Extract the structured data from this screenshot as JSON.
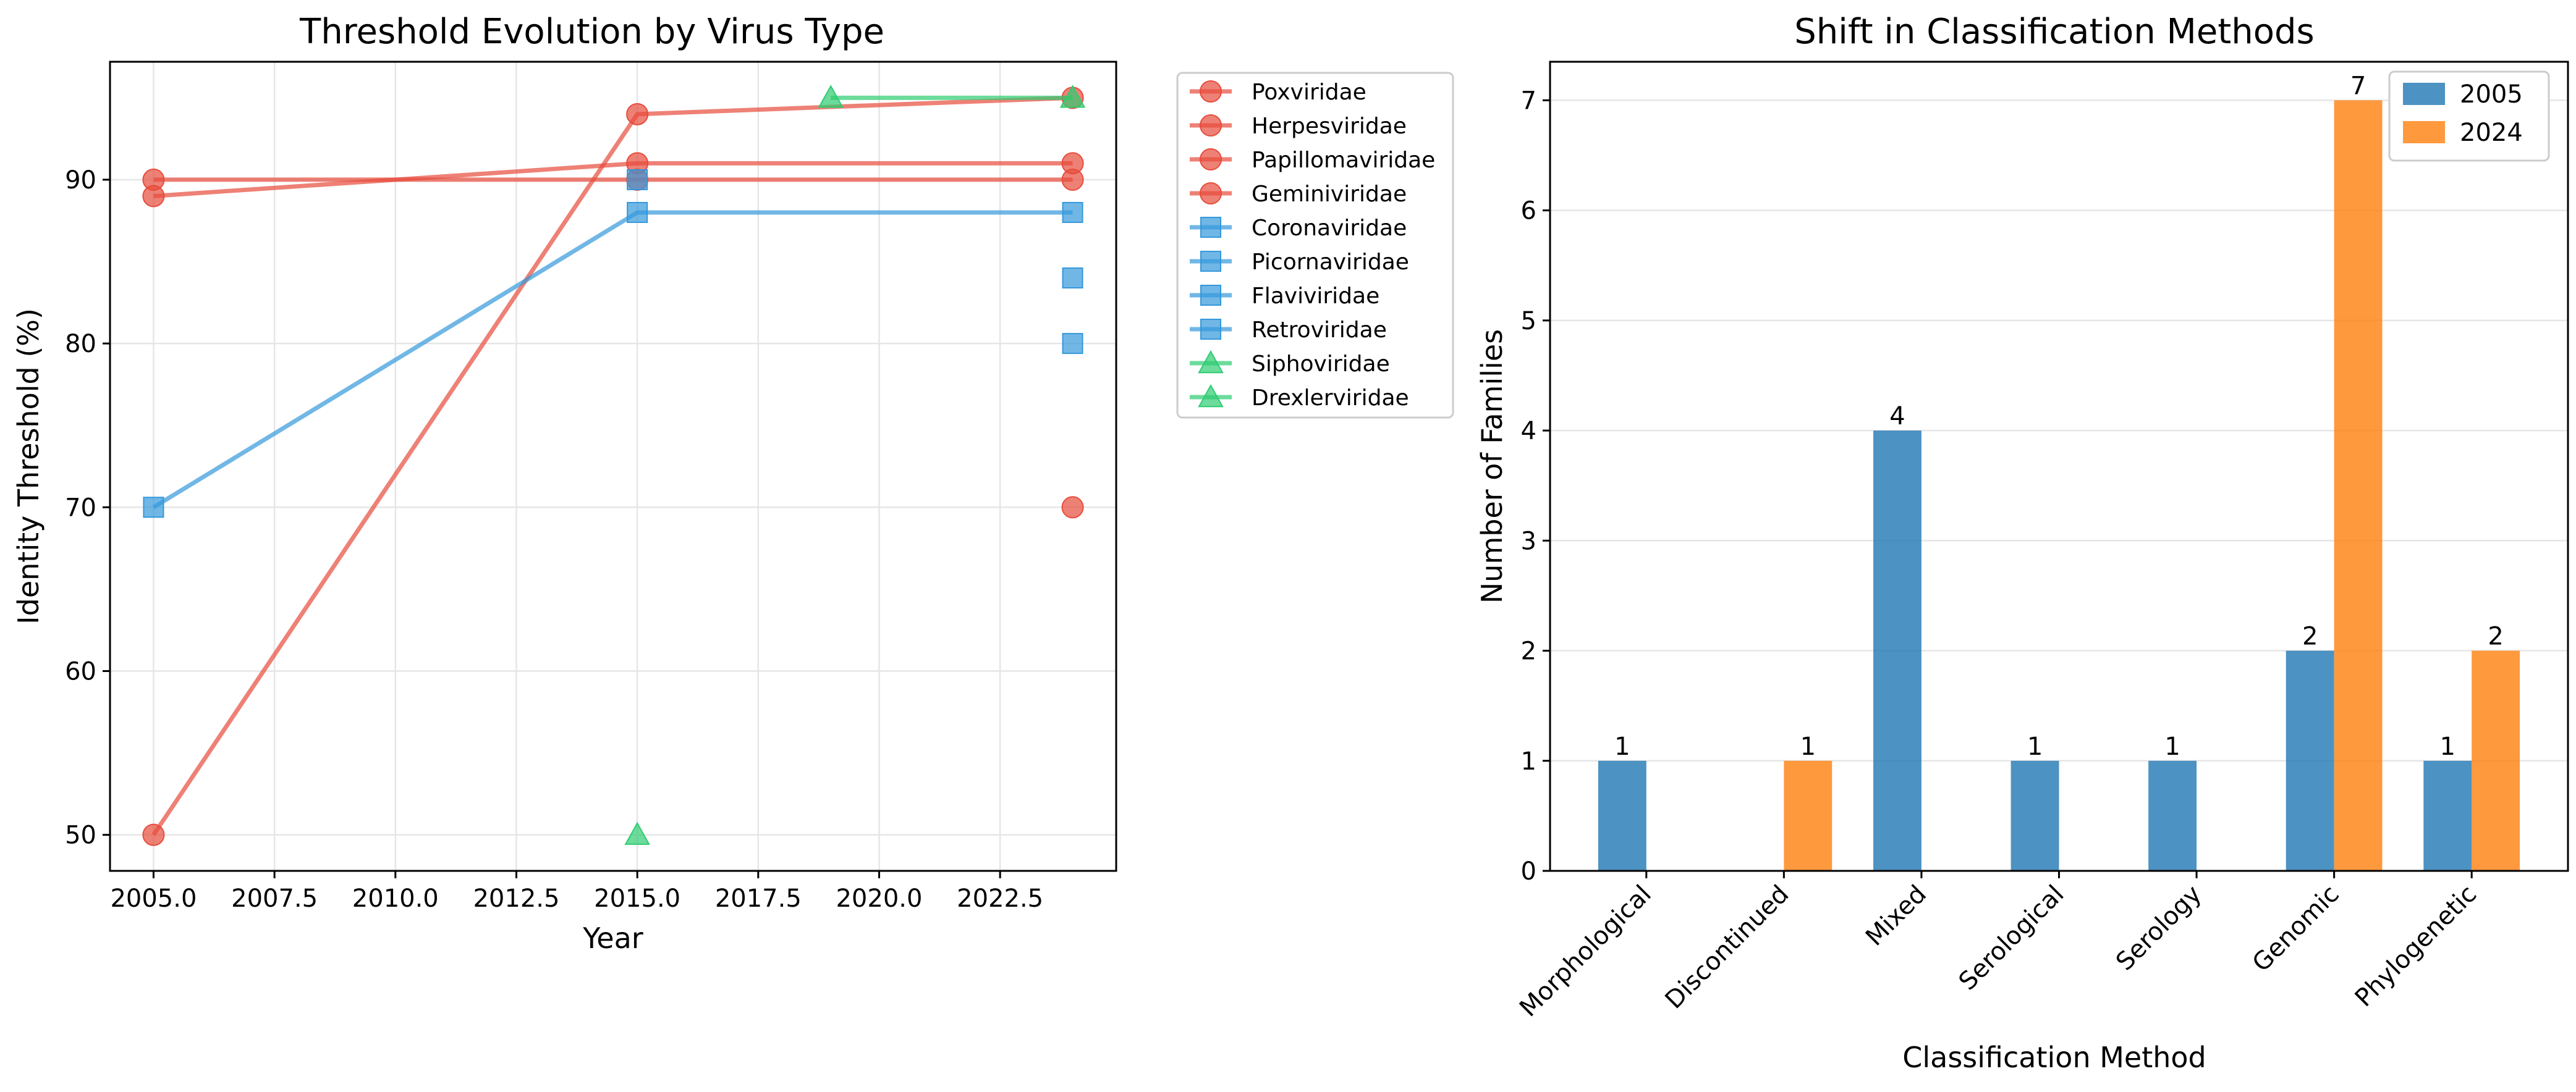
{
  "chart_data": [
    {
      "type": "line",
      "title": "Threshold Evolution by Virus Type",
      "xlabel": "Year",
      "ylabel": "Identity Threshold (%)",
      "xlim": [
        2004.1,
        2024.9
      ],
      "ylim": [
        47.8,
        97.2
      ],
      "xticks": [
        "2005.0",
        "2007.5",
        "2010.0",
        "2012.5",
        "2015.0",
        "2017.5",
        "2020.0",
        "2022.5"
      ],
      "yticks": [
        "50",
        "60",
        "70",
        "80",
        "90"
      ],
      "grid": true,
      "legend_position": "outside-right",
      "colors": {
        "red": "#e74c3c",
        "blue": "#3498db",
        "green": "#2ecc71"
      },
      "series": [
        {
          "name": "Poxviridae",
          "color": "#e74c3c",
          "marker": "circle",
          "points": [
            [
              2005,
              50
            ],
            [
              2015,
              94
            ],
            [
              2024,
              95
            ]
          ]
        },
        {
          "name": "Herpesviridae",
          "color": "#e74c3c",
          "marker": "circle",
          "points": [
            [
              2005,
              90
            ],
            [
              2015,
              90
            ],
            [
              2024,
              90
            ]
          ]
        },
        {
          "name": "Papillomaviridae",
          "color": "#e74c3c",
          "marker": "circle",
          "points": [
            [
              2005,
              89
            ],
            [
              2015,
              91
            ],
            [
              2024,
              91
            ]
          ]
        },
        {
          "name": "Geminiviridae",
          "color": "#e74c3c",
          "marker": "circle",
          "points": [
            [
              2024,
              70
            ]
          ]
        },
        {
          "name": "Coronaviridae",
          "color": "#3498db",
          "marker": "square",
          "points": [
            [
              2005,
              70
            ],
            [
              2015,
              88
            ],
            [
              2024,
              88
            ]
          ]
        },
        {
          "name": "Picornaviridae",
          "color": "#3498db",
          "marker": "square",
          "points": [
            [
              2015,
              90
            ]
          ]
        },
        {
          "name": "Flaviviridae",
          "color": "#3498db",
          "marker": "square",
          "points": [
            [
              2024,
              84
            ]
          ]
        },
        {
          "name": "Retroviridae",
          "color": "#3498db",
          "marker": "square",
          "points": [
            [
              2024,
              80
            ]
          ]
        },
        {
          "name": "Siphoviridae",
          "color": "#2ecc71",
          "marker": "triangle",
          "points": [
            [
              2015,
              50
            ]
          ]
        },
        {
          "name": "Drexlerviridae",
          "color": "#2ecc71",
          "marker": "triangle",
          "points": [
            [
              2019,
              95
            ],
            [
              2024,
              95
            ]
          ]
        }
      ]
    },
    {
      "type": "bar",
      "title": "Shift in Classification Methods",
      "xlabel": "Classification Method",
      "ylabel": "Number of Families",
      "categories": [
        "Morphological",
        "Discontinued",
        "Mixed",
        "Serological",
        "Serology",
        "Genomic",
        "Phylogenetic"
      ],
      "ylim": [
        0,
        7.35
      ],
      "yticks": [
        "0",
        "1",
        "2",
        "3",
        "4",
        "5",
        "6",
        "7"
      ],
      "grid": true,
      "legend_position": "top-right",
      "series": [
        {
          "name": "2005",
          "color": "#1f77b4",
          "values": [
            1,
            0,
            4,
            1,
            1,
            2,
            1
          ]
        },
        {
          "name": "2024",
          "color": "#ff7f0e",
          "values": [
            0,
            1,
            0,
            0,
            0,
            7,
            2
          ]
        }
      ]
    }
  ]
}
